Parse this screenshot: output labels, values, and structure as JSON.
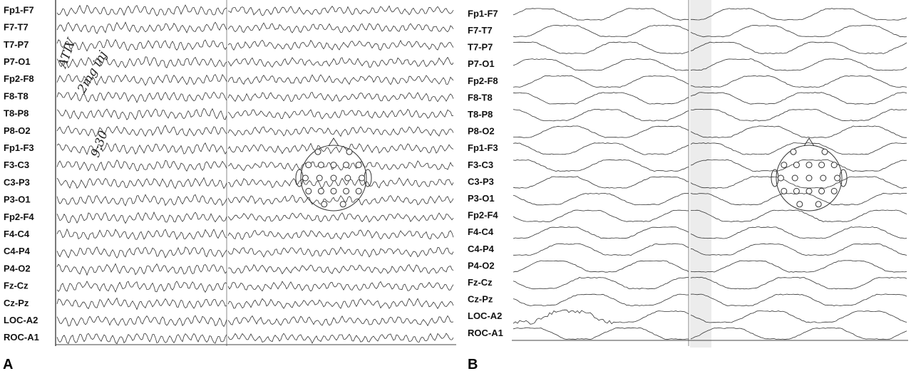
{
  "panel_a": {
    "label": "A",
    "channels": [
      "Fp1-F7",
      "F7-T7",
      "T7-P7",
      "P7-O1",
      "Fp2-F8",
      "F8-T8",
      "T8-P8",
      "P8-O2",
      "Fp1-F3",
      "F3-C3",
      "C3-P3",
      "P3-O1",
      "Fp2-F4",
      "F4-C4",
      "C4-P4",
      "P4-O2",
      "Fz-Cz",
      "Cz-Pz",
      "LOC-A2",
      "ROC-A1"
    ],
    "annotations": [
      "ATIV",
      "2mg inj",
      "9:30"
    ]
  },
  "panel_b": {
    "label": "B",
    "channels": [
      "Fp1-F7",
      "F7-T7",
      "T7-P7",
      "P7-O1",
      "Fp2-F8",
      "F8-T8",
      "T8-P8",
      "P8-O2",
      "Fp1-F3",
      "F3-C3",
      "C3-P3",
      "P3-O1",
      "Fp2-F4",
      "F4-C4",
      "C4-P4",
      "P4-O2",
      "Fz-Cz",
      "Cz-Pz",
      "LOC-A2",
      "ROC-A1"
    ]
  }
}
